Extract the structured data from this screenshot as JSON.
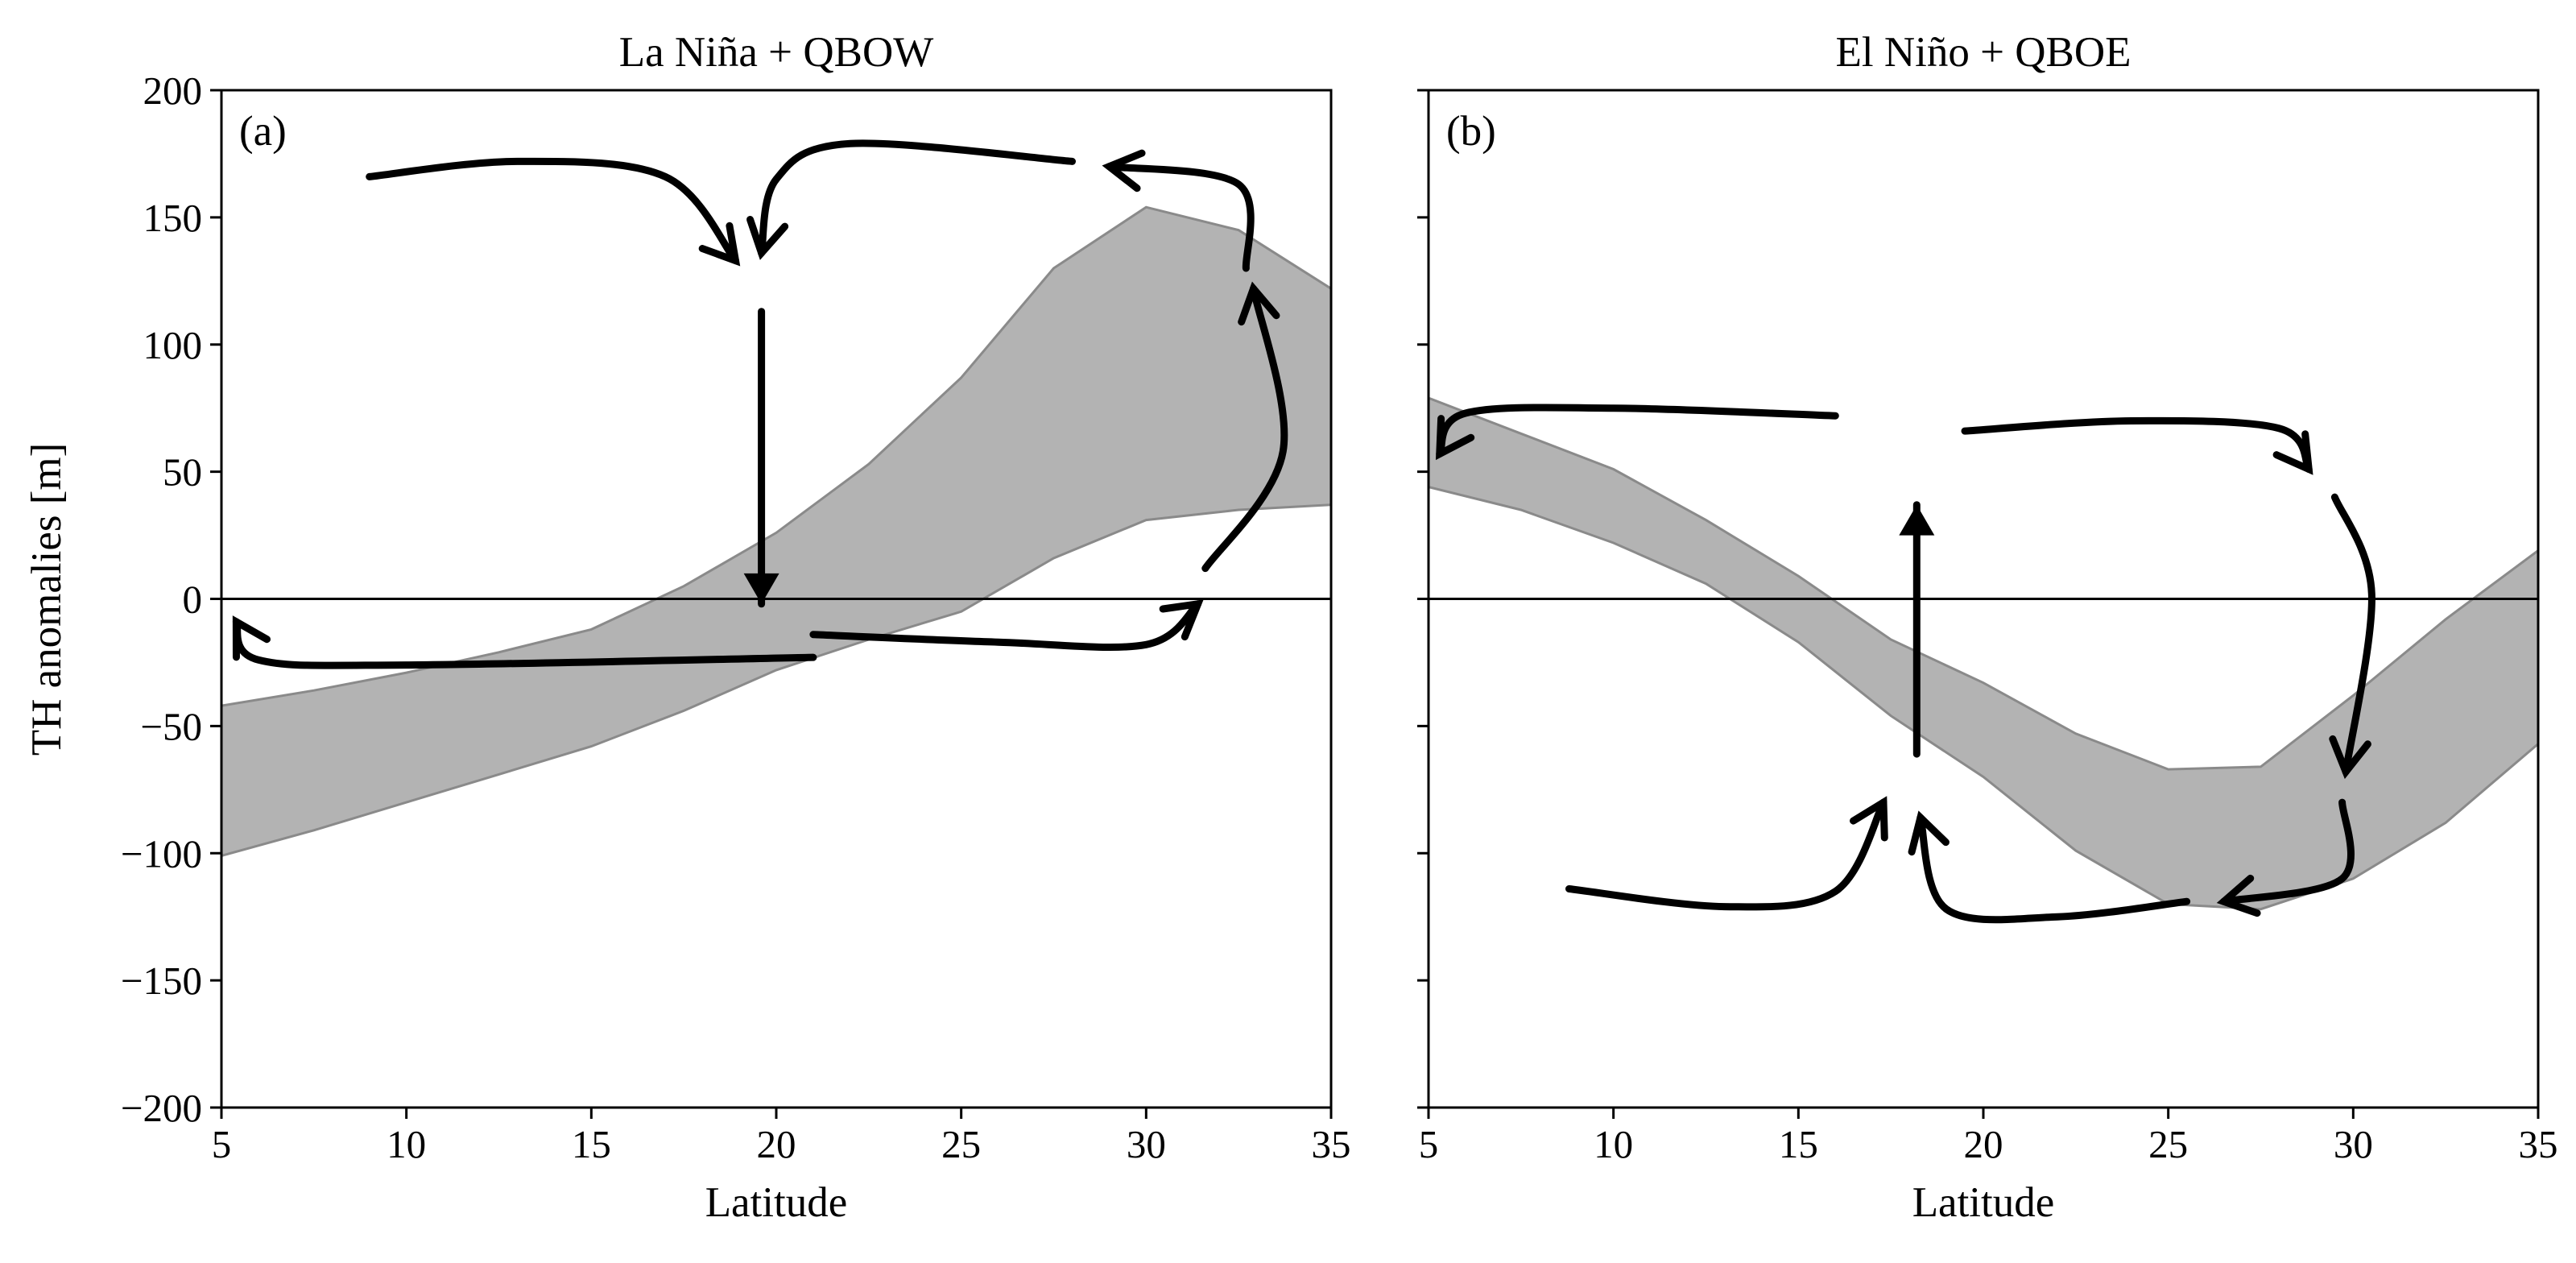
{
  "chart_data": [
    {
      "type": "area",
      "title": "La Niña + QBOW",
      "panel_label": "(a)",
      "xlabel": "Latitude",
      "ylabel": "TH anomalies [m]",
      "xlim": [
        5,
        35
      ],
      "ylim": [
        -200,
        200
      ],
      "xticks": [
        5,
        10,
        15,
        20,
        25,
        30,
        35
      ],
      "yticks": [
        -200,
        -150,
        -100,
        -50,
        0,
        50,
        100,
        150,
        200
      ],
      "zero_line": true,
      "band_color": "#b3b3b3",
      "band": {
        "x": [
          5,
          7.5,
          10,
          12.5,
          15,
          17.5,
          20,
          22.5,
          25,
          27.5,
          30,
          32.5,
          35
        ],
        "upper": [
          -42,
          -36,
          -29,
          -21,
          -12,
          5,
          26,
          53,
          87,
          130,
          154,
          145,
          122
        ],
        "lower": [
          -101,
          -91,
          -80,
          -69,
          -58,
          -44,
          -28,
          -16,
          -5,
          16,
          31,
          35,
          37
        ]
      },
      "circulation": [
        {
          "name": "upper-left-arrow",
          "points": [
            [
              9,
              166
            ],
            [
              13,
              172
            ],
            [
              17,
              166
            ],
            [
              18.9,
              133
            ]
          ]
        },
        {
          "name": "upper-right-arrow",
          "points": [
            [
              28,
              172
            ],
            [
              22,
              179
            ],
            [
              20,
              165
            ],
            [
              19.6,
              136
            ]
          ]
        },
        {
          "name": "descent-arrow",
          "points": [
            [
              19.6,
              113
            ],
            [
              19.6,
              -2
            ]
          ]
        },
        {
          "name": "lower-left-arrow",
          "points": [
            [
              21,
              -23
            ],
            [
              10,
              -26
            ],
            [
              6,
              -24
            ],
            [
              5.4,
              -9
            ]
          ]
        },
        {
          "name": "lower-right-arrow",
          "points": [
            [
              21,
              -14
            ],
            [
              26,
              -17
            ],
            [
              30,
              -18
            ],
            [
              31.4,
              -2
            ]
          ]
        },
        {
          "name": "ascent-arrow",
          "points": [
            [
              31.6,
              12
            ],
            [
              33.7,
              58
            ],
            [
              32.9,
              122
            ]
          ]
        },
        {
          "name": "top-return-arrow",
          "points": [
            [
              32.7,
              130
            ],
            [
              32.5,
              163
            ],
            [
              29,
              170
            ]
          ]
        }
      ]
    },
    {
      "type": "area",
      "title": "El Niño + QBOE",
      "panel_label": "(b)",
      "xlabel": "Latitude",
      "xlim": [
        5,
        35
      ],
      "ylim": [
        -200,
        200
      ],
      "xticks": [
        5,
        10,
        15,
        20,
        25,
        30,
        35
      ],
      "yticks": [
        -200,
        -150,
        -100,
        -50,
        0,
        50,
        100,
        150,
        200
      ],
      "zero_line": true,
      "band_color": "#b3b3b3",
      "band": {
        "x": [
          5,
          7.5,
          10,
          12.5,
          15,
          17.5,
          20,
          22.5,
          25,
          27.5,
          30,
          32.5,
          35
        ],
        "upper": [
          79,
          65,
          51,
          31,
          9,
          -16,
          -33,
          -53,
          -67,
          -66,
          -38,
          -8,
          19
        ],
        "lower": [
          44,
          35,
          22,
          6,
          -17,
          -46,
          -70,
          -99,
          -120,
          -122,
          -110,
          -88,
          -57
        ]
      },
      "circulation": [
        {
          "name": "top-left-arrow",
          "points": [
            [
              16,
              72
            ],
            [
              10,
              75
            ],
            [
              6,
              73
            ],
            [
              5.3,
              57
            ]
          ]
        },
        {
          "name": "top-right-arrow",
          "points": [
            [
              19.5,
              66
            ],
            [
              24,
              70
            ],
            [
              28,
              67
            ],
            [
              28.8,
              51
            ]
          ]
        },
        {
          "name": "right-descent-arrow",
          "points": [
            [
              29.5,
              40
            ],
            [
              30.5,
              2
            ],
            [
              29.8,
              -68
            ]
          ]
        },
        {
          "name": "bottom-right-arrow",
          "points": [
            [
              29.7,
              -80
            ],
            [
              29.7,
              -110
            ],
            [
              26.5,
              -119
            ]
          ]
        },
        {
          "name": "bottom-mid-arrow",
          "points": [
            [
              25.5,
              -119
            ],
            [
              22,
              -125
            ],
            [
              19,
              -122
            ],
            [
              18.3,
              -86
            ]
          ]
        },
        {
          "name": "bottom-left-arrow",
          "points": [
            [
              8.8,
              -114
            ],
            [
              13,
              -121
            ],
            [
              16,
              -115
            ],
            [
              17.3,
              -80
            ]
          ]
        },
        {
          "name": "ascent-arrow",
          "points": [
            [
              18.2,
              -61
            ],
            [
              18.2,
              37
            ]
          ]
        }
      ]
    }
  ]
}
